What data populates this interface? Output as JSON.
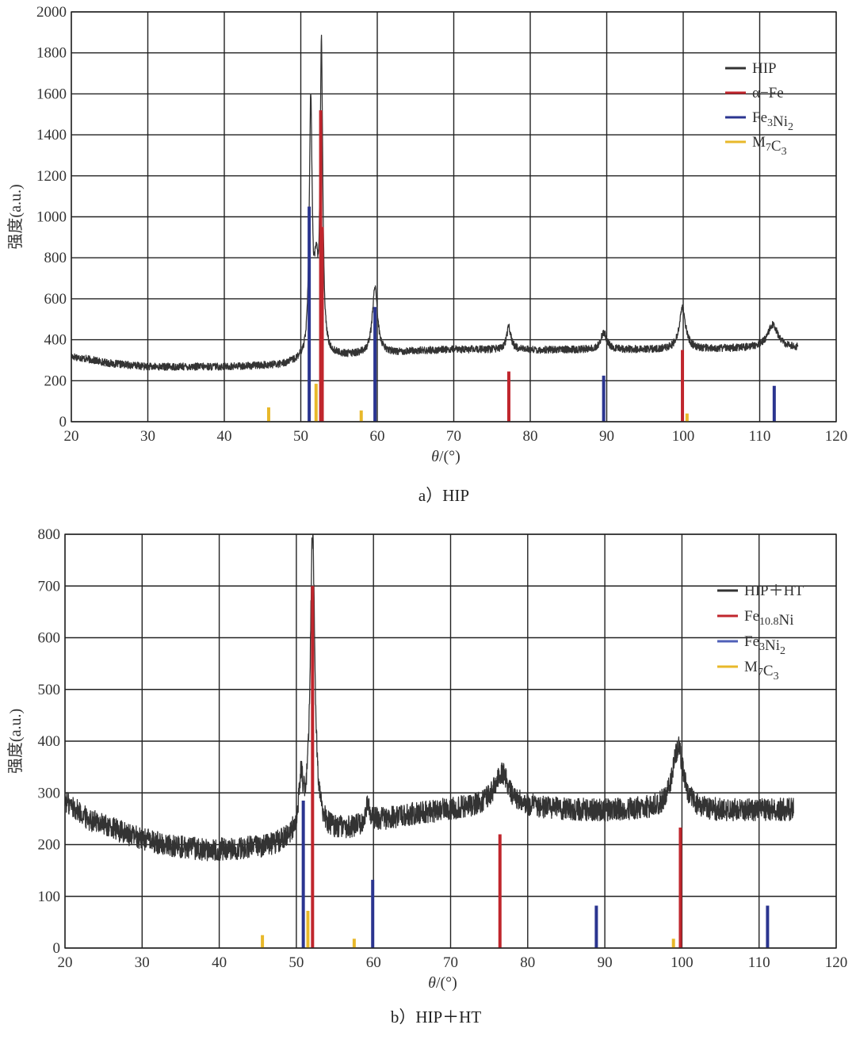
{
  "chart_data": [
    {
      "type": "line",
      "caption": "a）HIP",
      "xlabel_symbol": "θ",
      "xlabel_unit": "/(°)",
      "ylabel": "强度(a.u.)",
      "xlim": [
        20,
        120
      ],
      "ylim": [
        0,
        2000
      ],
      "xticks": [
        20,
        30,
        40,
        50,
        60,
        70,
        80,
        90,
        100,
        110,
        120
      ],
      "yticks": [
        0,
        200,
        400,
        600,
        800,
        1000,
        1200,
        1400,
        1600,
        1800,
        2000
      ],
      "grid": true,
      "legend_position": "top-right",
      "legend": [
        {
          "base": "HIP",
          "sub": "",
          "mid": "",
          "sub2": "",
          "color": "#333333"
        },
        {
          "base": "α−Fe",
          "sub": "",
          "mid": "",
          "sub2": "",
          "color": "#c0262d"
        },
        {
          "base": "Fe",
          "sub": "3",
          "mid": "Ni",
          "sub2": "2",
          "color": "#2b3590"
        },
        {
          "base": "M",
          "sub": "7",
          "mid": "C",
          "sub2": "3",
          "color": "#e8b82a"
        }
      ],
      "trace": {
        "name": "HIP",
        "color": "#333333",
        "x_range": [
          20,
          115
        ],
        "baseline_points": [
          [
            20,
            320
          ],
          [
            25,
            285
          ],
          [
            30,
            268
          ],
          [
            40,
            268
          ],
          [
            47,
            275
          ],
          [
            50,
            290
          ],
          [
            55,
            320
          ],
          [
            60,
            330
          ],
          [
            65,
            345
          ],
          [
            70,
            352
          ],
          [
            80,
            350
          ],
          [
            90,
            352
          ],
          [
            100,
            352
          ],
          [
            110,
            360
          ],
          [
            115,
            360
          ]
        ],
        "noise_amplitude": 18,
        "peaks": [
          {
            "x": 51.3,
            "height": 1230,
            "width": 0.22
          },
          {
            "x": 52.0,
            "height": 350,
            "width": 0.3
          },
          {
            "x": 52.7,
            "height": 1480,
            "width": 0.2
          },
          {
            "x": 59.7,
            "height": 330,
            "width": 0.4
          },
          {
            "x": 77.2,
            "height": 110,
            "width": 0.35
          },
          {
            "x": 89.6,
            "height": 85,
            "width": 0.45
          },
          {
            "x": 99.9,
            "height": 200,
            "width": 0.5
          },
          {
            "x": 111.7,
            "height": 115,
            "width": 0.8
          }
        ]
      },
      "reference_series": [
        {
          "name": "α−Fe",
          "color": "#c0262d",
          "x": [
            52.6,
            52.8,
            77.2,
            99.9
          ],
          "y": [
            1520,
            950,
            245,
            350
          ]
        },
        {
          "name": "Fe3Ni2",
          "color": "#2b3590",
          "x": [
            51.1,
            59.7,
            89.6,
            111.9
          ],
          "y": [
            1050,
            560,
            225,
            175
          ]
        },
        {
          "name": "M7C3",
          "color": "#e8b82a",
          "x": [
            45.8,
            52.0,
            57.9,
            100.5
          ],
          "y": [
            70,
            185,
            55,
            40
          ]
        }
      ]
    },
    {
      "type": "line",
      "caption": "b）HIP＋HT",
      "xlabel_symbol": "θ",
      "xlabel_unit": "/(°)",
      "ylabel": "强度(a.u.)",
      "xlim": [
        20,
        120
      ],
      "ylim": [
        0,
        800
      ],
      "xticks": [
        20,
        30,
        40,
        50,
        60,
        70,
        80,
        90,
        100,
        110,
        120
      ],
      "yticks": [
        0,
        100,
        200,
        300,
        400,
        500,
        600,
        700,
        800
      ],
      "grid": true,
      "legend_position": "right",
      "legend": [
        {
          "base": "HIP＋HT",
          "sub": "",
          "mid": "",
          "sub2": "",
          "color": "#333333"
        },
        {
          "base": "Fe",
          "sub": "10.8",
          "mid": "Ni",
          "sub2": "",
          "color": "#c0262d"
        },
        {
          "base": "Fe",
          "sub": "3",
          "mid": "Ni",
          "sub2": "2",
          "color": "#5060b8"
        },
        {
          "base": "M",
          "sub": "7",
          "mid": "C",
          "sub2": "3",
          "color": "#e8b82a"
        }
      ],
      "trace": {
        "name": "HIP+HT",
        "color": "#333333",
        "x_range": [
          20,
          114.5
        ],
        "baseline_points": [
          [
            20,
            285
          ],
          [
            23,
            250
          ],
          [
            28,
            220
          ],
          [
            33,
            200
          ],
          [
            38,
            190
          ],
          [
            43,
            192
          ],
          [
            47,
            198
          ],
          [
            50,
            215
          ],
          [
            53,
            225
          ],
          [
            57,
            230
          ],
          [
            60,
            245
          ],
          [
            65,
            258
          ],
          [
            70,
            268
          ],
          [
            75,
            275
          ],
          [
            80,
            272
          ],
          [
            85,
            268
          ],
          [
            90,
            265
          ],
          [
            95,
            268
          ],
          [
            100,
            268
          ],
          [
            105,
            265
          ],
          [
            114.5,
            268
          ]
        ],
        "noise_amplitude": 22,
        "peaks": [
          {
            "x": 50.6,
            "height": 95,
            "width": 0.35
          },
          {
            "x": 52.1,
            "height": 580,
            "width": 0.35
          },
          {
            "x": 59.3,
            "height": 35,
            "width": 0.35
          },
          {
            "x": 76.6,
            "height": 65,
            "width": 1.1
          },
          {
            "x": 99.5,
            "height": 120,
            "width": 0.85
          }
        ]
      },
      "reference_series": [
        {
          "name": "Fe10.8Ni",
          "color": "#c0262d",
          "x": [
            52.1,
            76.4,
            99.8
          ],
          "y": [
            700,
            220,
            233
          ]
        },
        {
          "name": "Fe3Ni2",
          "color": "#2b3590",
          "x": [
            50.9,
            59.9,
            88.9,
            111.1
          ],
          "y": [
            285,
            132,
            82,
            82
          ]
        },
        {
          "name": "M7C3",
          "color": "#e8b82a",
          "x": [
            45.6,
            51.5,
            57.5,
            98.9
          ],
          "y": [
            25,
            72,
            18,
            18
          ]
        }
      ]
    }
  ]
}
